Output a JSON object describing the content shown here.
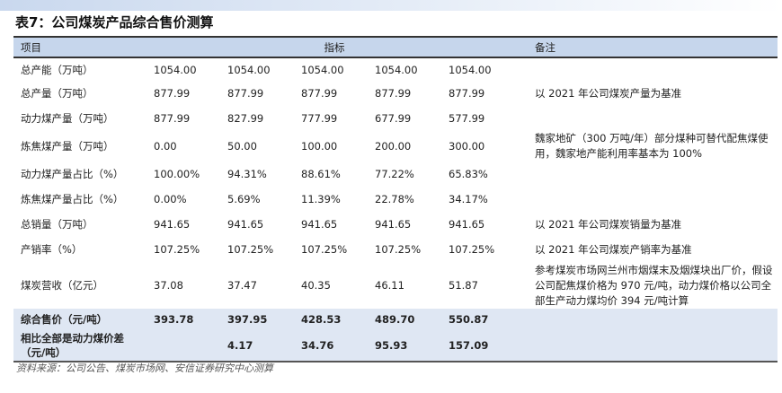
{
  "title": "表7：公司煤炭产品综合售价测算",
  "headers": {
    "item": "项目",
    "metric": "指标",
    "note": "备注"
  },
  "rows": [
    {
      "label": "总产能（万吨）",
      "values": [
        "1054.00",
        "1054.00",
        "1054.00",
        "1054.00",
        "1054.00"
      ],
      "note": ""
    },
    {
      "label": "总产量（万吨）",
      "values": [
        "877.99",
        "877.99",
        "877.99",
        "877.99",
        "877.99"
      ],
      "note": "以 2021 年公司煤炭产量为基准"
    },
    {
      "label": "动力煤产量（万吨）",
      "values": [
        "877.99",
        "827.99",
        "777.99",
        "677.99",
        "577.99"
      ],
      "note": ""
    },
    {
      "label": "炼焦煤产量（万吨）",
      "values": [
        "0.00",
        "50.00",
        "100.00",
        "200.00",
        "300.00"
      ],
      "note": "魏家地矿（300 万吨/年）部分煤种可替代配焦煤使用，魏家地产能利用率基本为 100%"
    },
    {
      "label": "动力煤产量占比（%）",
      "values": [
        "100.00%",
        "94.31%",
        "88.61%",
        "77.22%",
        "65.83%"
      ],
      "note": ""
    },
    {
      "label": "炼焦煤产量占比（%）",
      "values": [
        "0.00%",
        "5.69%",
        "11.39%",
        "22.78%",
        "34.17%"
      ],
      "note": ""
    },
    {
      "label": "总销量（万吨）",
      "values": [
        "941.65",
        "941.65",
        "941.65",
        "941.65",
        "941.65"
      ],
      "note": "以 2021 年公司煤炭销量为基准"
    },
    {
      "label": "产销率（%）",
      "values": [
        "107.25%",
        "107.25%",
        "107.25%",
        "107.25%",
        "107.25%"
      ],
      "note": "以 2021 年公司煤炭产销率为基准"
    },
    {
      "label": "煤炭营收（亿元）",
      "values": [
        "37.08",
        "37.47",
        "40.35",
        "46.11",
        "51.87"
      ],
      "note": "参考煤炭市场网兰州市烟煤末及烟煤块出厂价，假设公司配焦煤价格为 970 元/吨，动力煤价格以公司全部生产动力煤均价 394 元/吨计算"
    },
    {
      "label": "综合售价（元/吨）",
      "values": [
        "393.78",
        "397.95",
        "428.53",
        "489.70",
        "550.87"
      ],
      "note": ""
    },
    {
      "label": "相比全部是动力煤价差（元/吨）",
      "values": [
        "",
        "4.17",
        "34.76",
        "95.93",
        "157.09"
      ],
      "note": ""
    }
  ],
  "source": "资料来源：公司公告、煤炭市场网、安信证券研究中心测算"
}
